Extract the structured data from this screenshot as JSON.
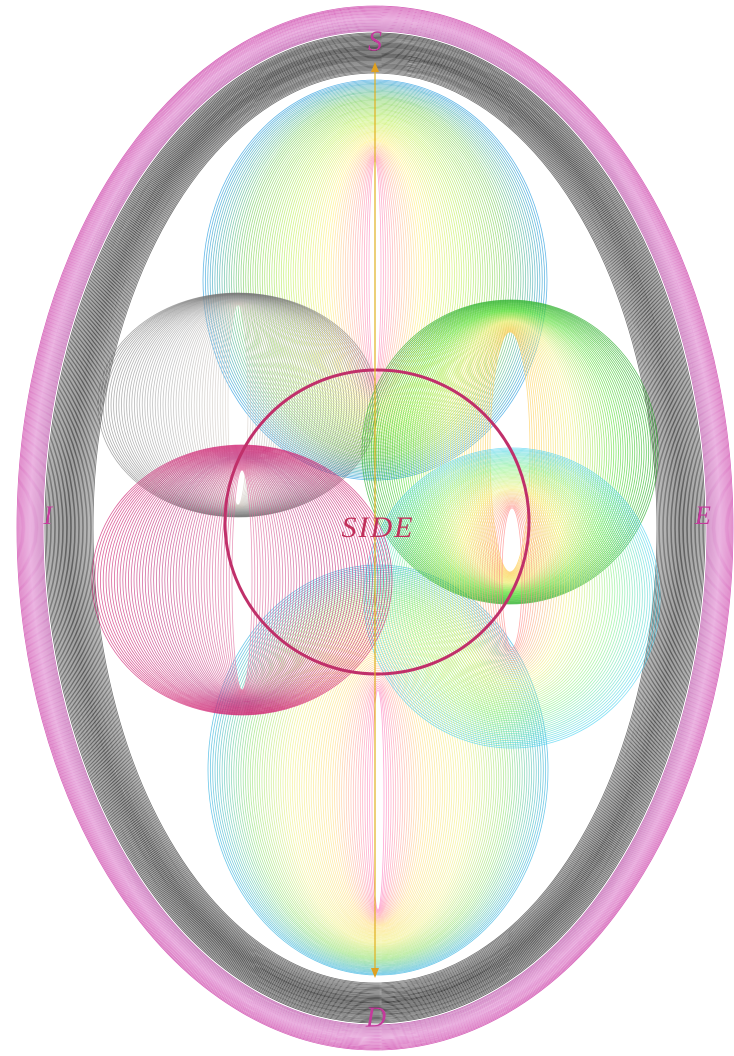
{
  "labels": {
    "top": "S",
    "left": "I",
    "right": "E",
    "bottom": "D",
    "center": "SIDE"
  }
}
